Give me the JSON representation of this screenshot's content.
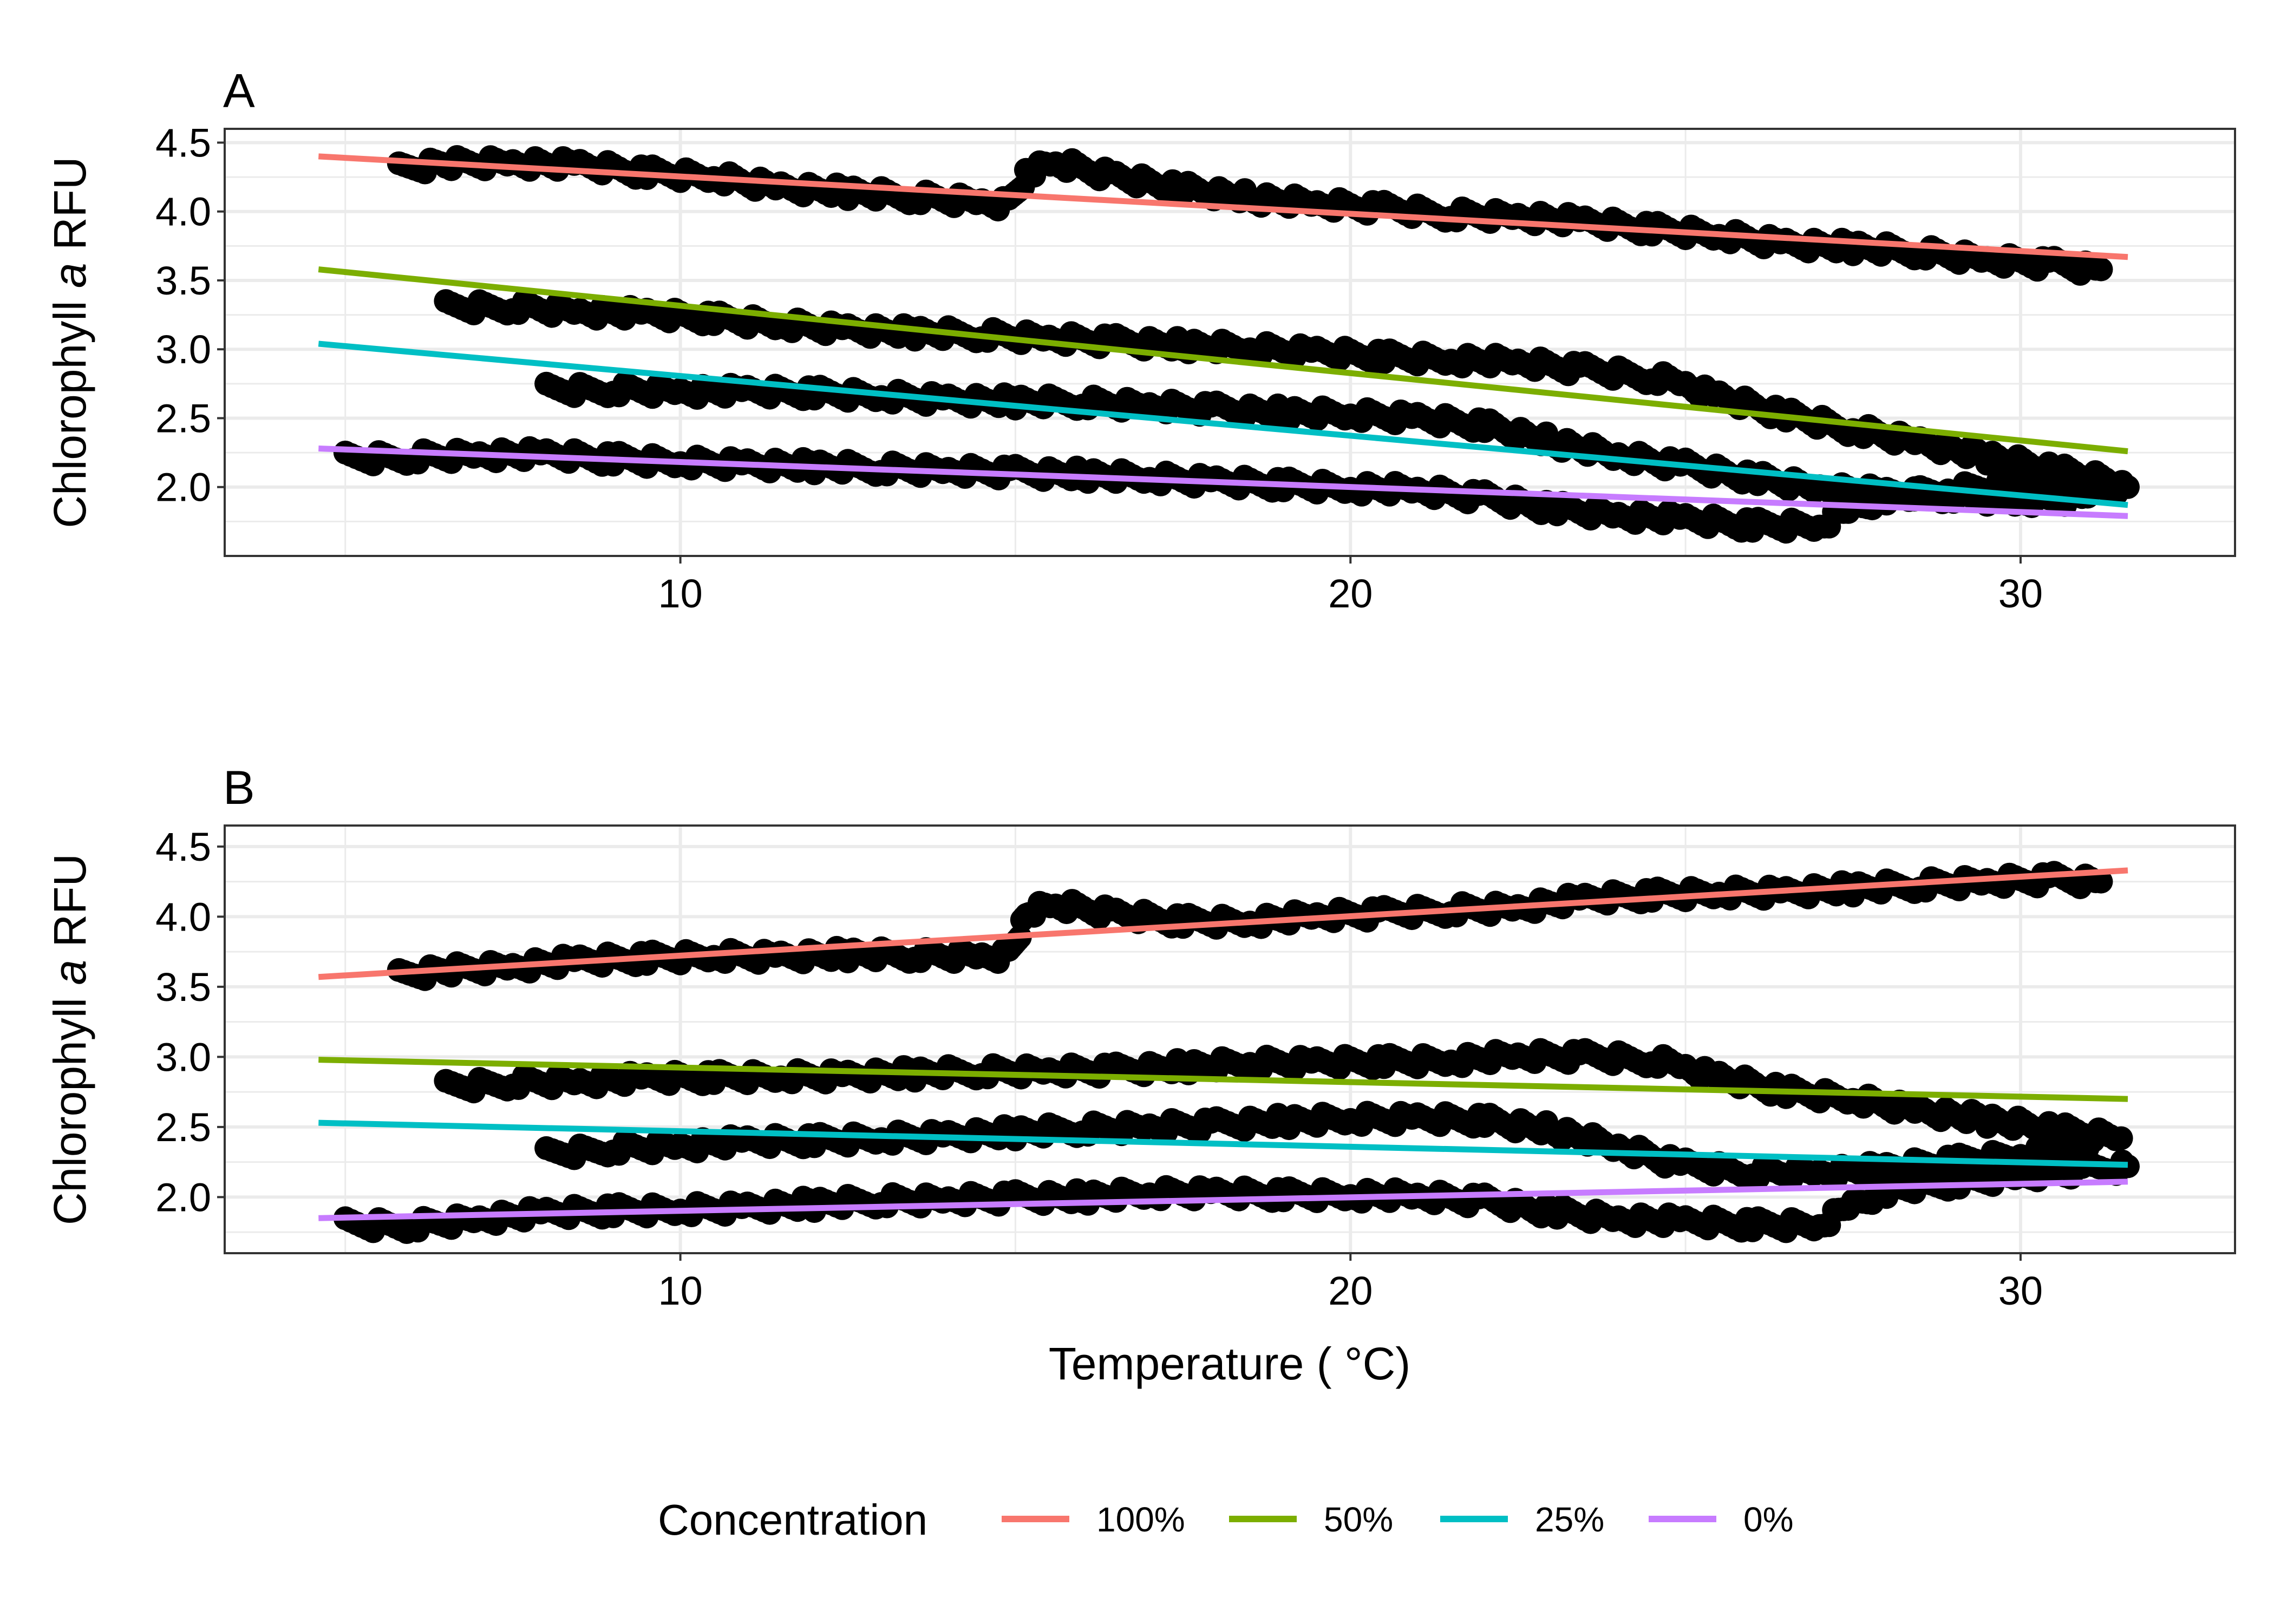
{
  "figure": {
    "xlabel": "Temperature ( °C)",
    "legend": {
      "title": "Concentration",
      "placement": "bottom",
      "entries": [
        "100%",
        "50%",
        "25%",
        "0%"
      ]
    },
    "colors": {
      "100%": "#F8766D",
      "50%": "#7CAE00",
      "25%": "#00BFC4",
      "0%": "#C77CFF",
      "points": "#000000",
      "grid": "#EBEBEB"
    }
  },
  "chart_data": [
    {
      "type": "scatter",
      "panel_label": "A",
      "ylabel": "Chlorophyll a RFU",
      "ylabel_parts": [
        "Chlorophyll ",
        "a",
        " RFU"
      ],
      "xlim": [
        3.2,
        33.2
      ],
      "ylim": [
        1.5,
        4.6
      ],
      "xticks": [
        "10",
        "20",
        "30"
      ],
      "yticks": [
        "2.0",
        "2.5",
        "3.0",
        "3.5",
        "4.0",
        "4.5"
      ],
      "grid": true,
      "fit_lines": [
        {
          "name": "100%",
          "x": [
            4.6,
            31.6
          ],
          "y": [
            4.4,
            3.67
          ]
        },
        {
          "name": "50%",
          "x": [
            4.6,
            31.6
          ],
          "y": [
            3.58,
            2.26
          ]
        },
        {
          "name": "25%",
          "x": [
            4.6,
            31.6
          ],
          "y": [
            3.04,
            1.87
          ]
        },
        {
          "name": "0%",
          "x": [
            4.6,
            31.6
          ],
          "y": [
            2.28,
            1.79
          ]
        }
      ],
      "point_series": [
        {
          "x": [
            5.8,
            6.5,
            7.5,
            8.5,
            9.5,
            10.5,
            11.5,
            12.5,
            13.5,
            14.5,
            14.9,
            15.2,
            15.6,
            16.5,
            17.5,
            18.5,
            19.5,
            20.5,
            21.5,
            22.5,
            23.5,
            24.5,
            25.5,
            26.5,
            27.5,
            28.5,
            29.5,
            30.5,
            31.2
          ],
          "y": [
            4.3,
            4.35,
            4.36,
            4.33,
            4.28,
            4.25,
            4.18,
            4.14,
            4.1,
            4.07,
            4.05,
            4.3,
            4.35,
            4.25,
            4.17,
            4.1,
            4.05,
            4.02,
            3.98,
            3.97,
            3.92,
            3.87,
            3.83,
            3.77,
            3.74,
            3.7,
            3.65,
            3.62,
            3.58
          ]
        },
        {
          "x": [
            6.5,
            7.5,
            8.5,
            9.5,
            10.5,
            11.5,
            12.5,
            13.5,
            14.5,
            15.5,
            16.5,
            17.5,
            18.5,
            19.5,
            20.5,
            21.5,
            22.5,
            23.5,
            24.5,
            25.0,
            25.5,
            26.5,
            27.5,
            28.5,
            29.5,
            30.5,
            31.5
          ],
          "y": [
            3.3,
            3.31,
            3.28,
            3.25,
            3.22,
            3.18,
            3.15,
            3.12,
            3.1,
            3.08,
            3.06,
            3.03,
            3.0,
            2.98,
            2.95,
            2.93,
            2.9,
            2.85,
            2.8,
            2.75,
            2.65,
            2.52,
            2.42,
            2.33,
            2.22,
            2.12,
            2.03
          ]
        },
        {
          "x": [
            8.0,
            9.0,
            10.0,
            11.0,
            12.0,
            13.0,
            14.0,
            15.0,
            16.0,
            17.0,
            18.0,
            19.0,
            20.0,
            21.0,
            22.0,
            23.0,
            24.0,
            25.0,
            26.0,
            27.0,
            28.0,
            29.0,
            30.0,
            31.0
          ],
          "y": [
            2.7,
            2.71,
            2.7,
            2.69,
            2.68,
            2.66,
            2.64,
            2.62,
            2.61,
            2.59,
            2.57,
            2.54,
            2.52,
            2.5,
            2.45,
            2.33,
            2.22,
            2.15,
            2.07,
            2.0,
            1.95,
            1.93,
            1.9,
            1.93
          ]
        },
        {
          "x": [
            5.0,
            6.0,
            7.0,
            8.0,
            9.0,
            10.0,
            11.0,
            12.0,
            13.0,
            14.0,
            15.0,
            16.0,
            17.0,
            18.0,
            19.0,
            20.0,
            21.0,
            22.0,
            23.0,
            24.0,
            25.0,
            26.0,
            27.0,
            27.5,
            28.0,
            29.0,
            30.0,
            31.0,
            31.6
          ],
          "y": [
            2.2,
            2.22,
            2.24,
            2.23,
            2.2,
            2.18,
            2.17,
            2.15,
            2.13,
            2.12,
            2.11,
            2.09,
            2.06,
            2.04,
            2.02,
            2.0,
            1.97,
            1.92,
            1.85,
            1.8,
            1.76,
            1.72,
            1.72,
            1.85,
            1.93,
            1.97,
            2.02,
            2.0,
            2.0
          ]
        }
      ]
    },
    {
      "type": "scatter",
      "panel_label": "B",
      "ylabel": "Chlorophyll a RFU",
      "ylabel_parts": [
        "Chlorophyll ",
        "a",
        " RFU"
      ],
      "xlim": [
        3.2,
        33.2
      ],
      "ylim": [
        1.6,
        4.65
      ],
      "xticks": [
        "10",
        "20",
        "30"
      ],
      "yticks": [
        "2.0",
        "2.5",
        "3.0",
        "3.5",
        "4.0",
        "4.5"
      ],
      "grid": true,
      "fit_lines": [
        {
          "name": "100%",
          "x": [
            4.6,
            31.6
          ],
          "y": [
            3.57,
            4.33
          ]
        },
        {
          "name": "50%",
          "x": [
            4.6,
            31.6
          ],
          "y": [
            2.98,
            2.7
          ]
        },
        {
          "name": "25%",
          "x": [
            4.6,
            31.6
          ],
          "y": [
            2.53,
            2.23
          ]
        },
        {
          "name": "0%",
          "x": [
            4.6,
            31.6
          ],
          "y": [
            1.85,
            2.11
          ]
        }
      ],
      "point_series": [
        {
          "x": [
            5.8,
            6.5,
            7.5,
            8.5,
            9.5,
            10.5,
            11.5,
            12.5,
            13.5,
            14.5,
            14.9,
            15.2,
            15.6,
            16.5,
            17.5,
            18.5,
            19.5,
            20.5,
            21.5,
            22.5,
            23.5,
            24.5,
            25.5,
            26.5,
            27.5,
            28.5,
            29.5,
            30.5,
            31.2
          ],
          "y": [
            3.57,
            3.62,
            3.65,
            3.68,
            3.7,
            3.72,
            3.72,
            3.73,
            3.72,
            3.72,
            3.72,
            4.05,
            4.08,
            4.02,
            3.97,
            3.97,
            4.0,
            4.02,
            4.05,
            4.07,
            4.12,
            4.15,
            4.17,
            4.18,
            4.2,
            4.22,
            4.25,
            4.27,
            4.25
          ]
        },
        {
          "x": [
            6.5,
            7.5,
            8.5,
            9.5,
            10.5,
            11.5,
            12.5,
            13.5,
            14.5,
            15.5,
            16.5,
            17.5,
            18.5,
            19.5,
            20.5,
            21.5,
            22.5,
            23.5,
            24.5,
            25.0,
            25.5,
            26.5,
            27.5,
            28.5,
            29.5,
            30.5,
            31.5
          ],
          "y": [
            2.78,
            2.82,
            2.83,
            2.84,
            2.85,
            2.86,
            2.87,
            2.88,
            2.89,
            2.9,
            2.91,
            2.93,
            2.95,
            2.96,
            2.97,
            2.98,
            3.0,
            3.0,
            2.98,
            2.93,
            2.85,
            2.75,
            2.7,
            2.62,
            2.55,
            2.48,
            2.42
          ]
        },
        {
          "x": [
            8.0,
            9.0,
            10.0,
            11.0,
            12.0,
            13.0,
            14.0,
            15.0,
            16.0,
            17.0,
            18.0,
            19.0,
            20.0,
            21.0,
            22.0,
            23.0,
            24.0,
            25.0,
            26.0,
            27.0,
            28.0,
            29.0,
            30.0,
            31.0
          ],
          "y": [
            2.3,
            2.35,
            2.37,
            2.39,
            2.4,
            2.42,
            2.44,
            2.46,
            2.48,
            2.5,
            2.52,
            2.54,
            2.55,
            2.56,
            2.55,
            2.48,
            2.35,
            2.22,
            2.18,
            2.18,
            2.2,
            2.25,
            2.3,
            2.35
          ]
        },
        {
          "x": [
            5.0,
            6.0,
            7.0,
            8.0,
            9.0,
            10.0,
            11.0,
            12.0,
            13.0,
            14.0,
            15.0,
            16.0,
            17.0,
            18.0,
            19.0,
            20.0,
            21.0,
            22.0,
            23.0,
            24.0,
            25.0,
            26.0,
            27.0,
            27.5,
            28.0,
            29.0,
            30.0,
            31.0,
            31.6
          ],
          "y": [
            1.8,
            1.8,
            1.85,
            1.88,
            1.9,
            1.91,
            1.93,
            1.95,
            1.97,
            1.98,
            2.0,
            2.0,
            2.02,
            2.03,
            2.02,
            2.02,
            2.0,
            1.97,
            1.9,
            1.85,
            1.82,
            1.8,
            1.8,
            1.95,
            2.05,
            2.1,
            2.15,
            2.2,
            2.22
          ]
        }
      ]
    }
  ]
}
